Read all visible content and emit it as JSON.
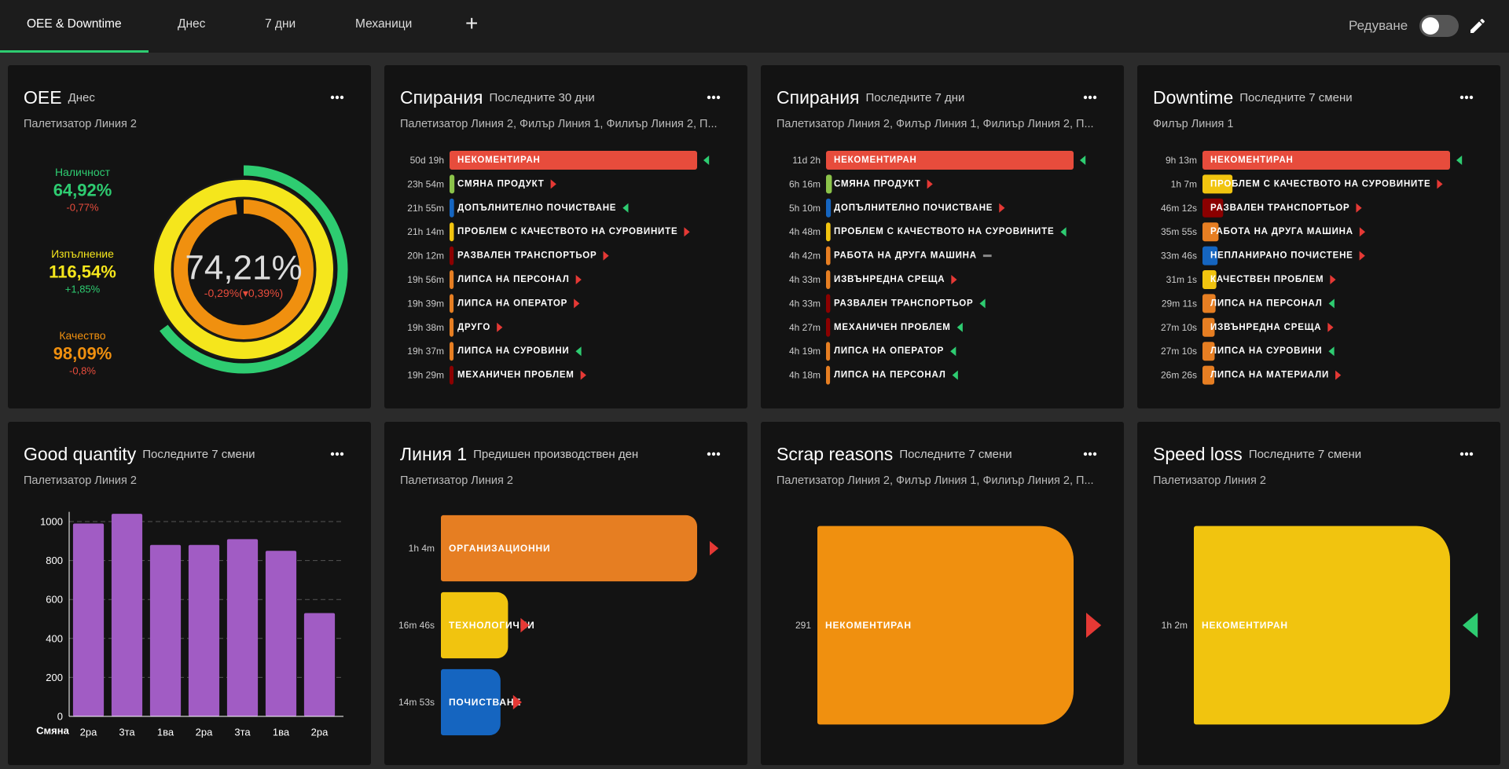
{
  "tabs": [
    "OEE & Downtime",
    "Днес",
    "7 дни",
    "Механици"
  ],
  "active_tab": 0,
  "edit_label": "Редуване",
  "chart_data": [
    {
      "type": "oee",
      "title": "OEE",
      "period": "Днес",
      "subtitle": "Палетизатор Линия 2",
      "metrics": [
        {
          "name": "Наличност",
          "value": 64.92,
          "value_label": "64,92%",
          "change_label": "-0,77%",
          "color": "#2ecc71",
          "change_color": "#e74c3c"
        },
        {
          "name": "Изпълнение",
          "value": 116.54,
          "value_label": "116,54%",
          "change_label": "+1,85%",
          "color": "#f5e61c",
          "change_color": "#2ecc71"
        },
        {
          "name": "Качество",
          "value": 98.09,
          "value_label": "98,09%",
          "change_label": "-0,8%",
          "color": "#f0900f",
          "change_color": "#e74c3c"
        }
      ],
      "center": {
        "value": 74.21,
        "value_label": "74,21%",
        "change_label": "-0,29%(",
        "previous_change_label": "0,39%)",
        "change_color": "#e74c3c"
      }
    },
    {
      "type": "ranked",
      "title": "Спирания",
      "period": "Последните 30 дни",
      "subtitle": "Палетизатор Линия 2, Филър Линия 1, Филиър Линия 2, П...",
      "items": [
        {
          "duration": "50d 19h",
          "label": "НЕКОМЕНТИРАН",
          "color": "#e74c3c",
          "trend": "down"
        },
        {
          "duration": "23h 54m",
          "label": "СМЯНА ПРОДУКТ",
          "color": "#8bc34a",
          "trend": "up"
        },
        {
          "duration": "21h 55m",
          "label": "ДОПЪЛНИТЕЛНО ПОЧИСТВАНЕ",
          "color": "#1565c0",
          "trend": "down"
        },
        {
          "duration": "21h 14m",
          "label": "ПРОБЛЕМ С КАЧЕСТВОТО НА СУРОВИНИТЕ",
          "color": "#f1c40f",
          "trend": "up"
        },
        {
          "duration": "20h 12m",
          "label": "РАЗВАЛЕН ТРАНСПОРТЬОР",
          "color": "#8b0000",
          "trend": "up"
        },
        {
          "duration": "19h 56m",
          "label": "ЛИПСА НА ПЕРСОНАЛ",
          "color": "#e67e22",
          "trend": "up"
        },
        {
          "duration": "19h 39m",
          "label": "ЛИПСА НА ОПЕРАТОР",
          "color": "#e67e22",
          "trend": "up"
        },
        {
          "duration": "19h 38m",
          "label": "ДРУГО",
          "color": "#e67e22",
          "trend": "up"
        },
        {
          "duration": "19h 37m",
          "label": "ЛИПСА НА СУРОВИНИ",
          "color": "#e67e22",
          "trend": "down"
        },
        {
          "duration": "19h 29m",
          "label": "МЕХАНИЧЕН ПРОБЛЕМ",
          "color": "#8b0000",
          "trend": "up"
        }
      ]
    },
    {
      "type": "ranked",
      "title": "Спирания",
      "period": "Последните 7 дни",
      "subtitle": "Палетизатор Линия 2, Филър Линия 1, Филиър Линия 2, П...",
      "items": [
        {
          "duration": "11d 2h",
          "label": "НЕКОМЕНТИРАН",
          "color": "#e74c3c",
          "trend": "down"
        },
        {
          "duration": "6h 16m",
          "label": "СМЯНА ПРОДУКТ",
          "color": "#8bc34a",
          "trend": "up"
        },
        {
          "duration": "5h 10m",
          "label": "ДОПЪЛНИТЕЛНО ПОЧИСТВАНЕ",
          "color": "#1565c0",
          "trend": "up"
        },
        {
          "duration": "4h 48m",
          "label": "ПРОБЛЕМ С КАЧЕСТВОТО НА СУРОВИНИТЕ",
          "color": "#f1c40f",
          "trend": "down"
        },
        {
          "duration": "4h 42m",
          "label": "РАБОТА НА ДРУГА МАШИНА",
          "color": "#e67e22",
          "trend": "flat"
        },
        {
          "duration": "4h 33m",
          "label": "ИЗВЪНРЕДНА СРЕЩА",
          "color": "#e67e22",
          "trend": "up"
        },
        {
          "duration": "4h 33m",
          "label": "РАЗВАЛЕН ТРАНСПОРТЬОР",
          "color": "#8b0000",
          "trend": "down"
        },
        {
          "duration": "4h 27m",
          "label": "МЕХАНИЧЕН ПРОБЛЕМ",
          "color": "#8b0000",
          "trend": "down"
        },
        {
          "duration": "4h 19m",
          "label": "ЛИПСА НА ОПЕРАТОР",
          "color": "#e67e22",
          "trend": "down"
        },
        {
          "duration": "4h 18m",
          "label": "ЛИПСА НА ПЕРСОНАЛ",
          "color": "#e67e22",
          "trend": "down"
        }
      ]
    },
    {
      "type": "ranked",
      "title": "Downtime",
      "period": "Последните 7 смени",
      "subtitle": "Филър Линия 1",
      "items": [
        {
          "duration": "9h 13m",
          "label": "НЕКОМЕНТИРАН",
          "color": "#e74c3c",
          "trend": "down"
        },
        {
          "duration": "1h 7m",
          "label": "ПРОБЛЕМ С КАЧЕСТВОТО НА СУРОВИНИТЕ",
          "color": "#f1c40f",
          "trend": "up"
        },
        {
          "duration": "46m 12s",
          "label": "РАЗВАЛЕН ТРАНСПОРТЬОР",
          "color": "#8b0000",
          "trend": "up"
        },
        {
          "duration": "35m 55s",
          "label": "РАБОТА НА ДРУГА МАШИНА",
          "color": "#e67e22",
          "trend": "up"
        },
        {
          "duration": "33m 46s",
          "label": "НЕПЛАНИРАНО ПОЧИСТЕНЕ",
          "color": "#1565c0",
          "trend": "up"
        },
        {
          "duration": "31m 1s",
          "label": "КАЧЕСТВЕН ПРОБЛЕМ",
          "color": "#f1c40f",
          "trend": "up"
        },
        {
          "duration": "29m 11s",
          "label": "ЛИПСА НА ПЕРСОНАЛ",
          "color": "#e67e22",
          "trend": "down"
        },
        {
          "duration": "27m 10s",
          "label": "ИЗВЪНРЕДНА СРЕЩА",
          "color": "#e67e22",
          "trend": "up"
        },
        {
          "duration": "27m 10s",
          "label": "ЛИПСА НА СУРОВИНИ",
          "color": "#e67e22",
          "trend": "down"
        },
        {
          "duration": "26m 26s",
          "label": "ЛИПСА НА МАТЕРИАЛИ",
          "color": "#e67e22",
          "trend": "up"
        }
      ]
    },
    {
      "type": "bar",
      "title": "Good quantity",
      "period": "Последните 7 смени",
      "subtitle": "Палетизатор Линия 2",
      "categories": [
        "2ра",
        "3та",
        "1ва",
        "2ра",
        "3та",
        "1ва",
        "2ра"
      ],
      "values": [
        990,
        1040,
        880,
        880,
        910,
        850,
        530
      ],
      "color": "#a15cc4",
      "xlabel": "Смяна",
      "ylim": [
        0,
        1050
      ],
      "yticks": [
        0,
        200,
        400,
        600,
        800,
        1000
      ],
      "grid": true
    },
    {
      "type": "hbar",
      "title": "Линия 1",
      "period": "Предишен производствен ден",
      "subtitle": "Палетизатор Линия 2",
      "items": [
        {
          "value": "1h 4m",
          "label": "ОРГАНИЗАЦИОННИ",
          "color": "#e67e22",
          "trend": "up"
        },
        {
          "value": "16m 46s",
          "label": "ТЕХНОЛОГИЧНИ",
          "color": "#f1c40f",
          "trend": "up"
        },
        {
          "value": "14m 53s",
          "label": "ПОЧИСТВАНЕ",
          "color": "#1565c0",
          "trend": "up"
        }
      ]
    },
    {
      "type": "hbar",
      "title": "Scrap reasons",
      "period": "Последните 7 смени",
      "subtitle": "Палетизатор Линия 2, Филър Линия 1, Филиър Линия 2, П...",
      "items": [
        {
          "value": 291,
          "label": "НЕКОМЕНТИРАН",
          "color": "#f0900f",
          "trend": "up"
        }
      ]
    },
    {
      "type": "hbar",
      "title": "Speed loss",
      "period": "Последните 7 смени",
      "subtitle": "Палетизатор Линия 2",
      "items": [
        {
          "value": "1h 2m",
          "label": "НЕКОМЕНТИРАН",
          "color": "#f1c40f",
          "trend": "down"
        }
      ]
    }
  ]
}
